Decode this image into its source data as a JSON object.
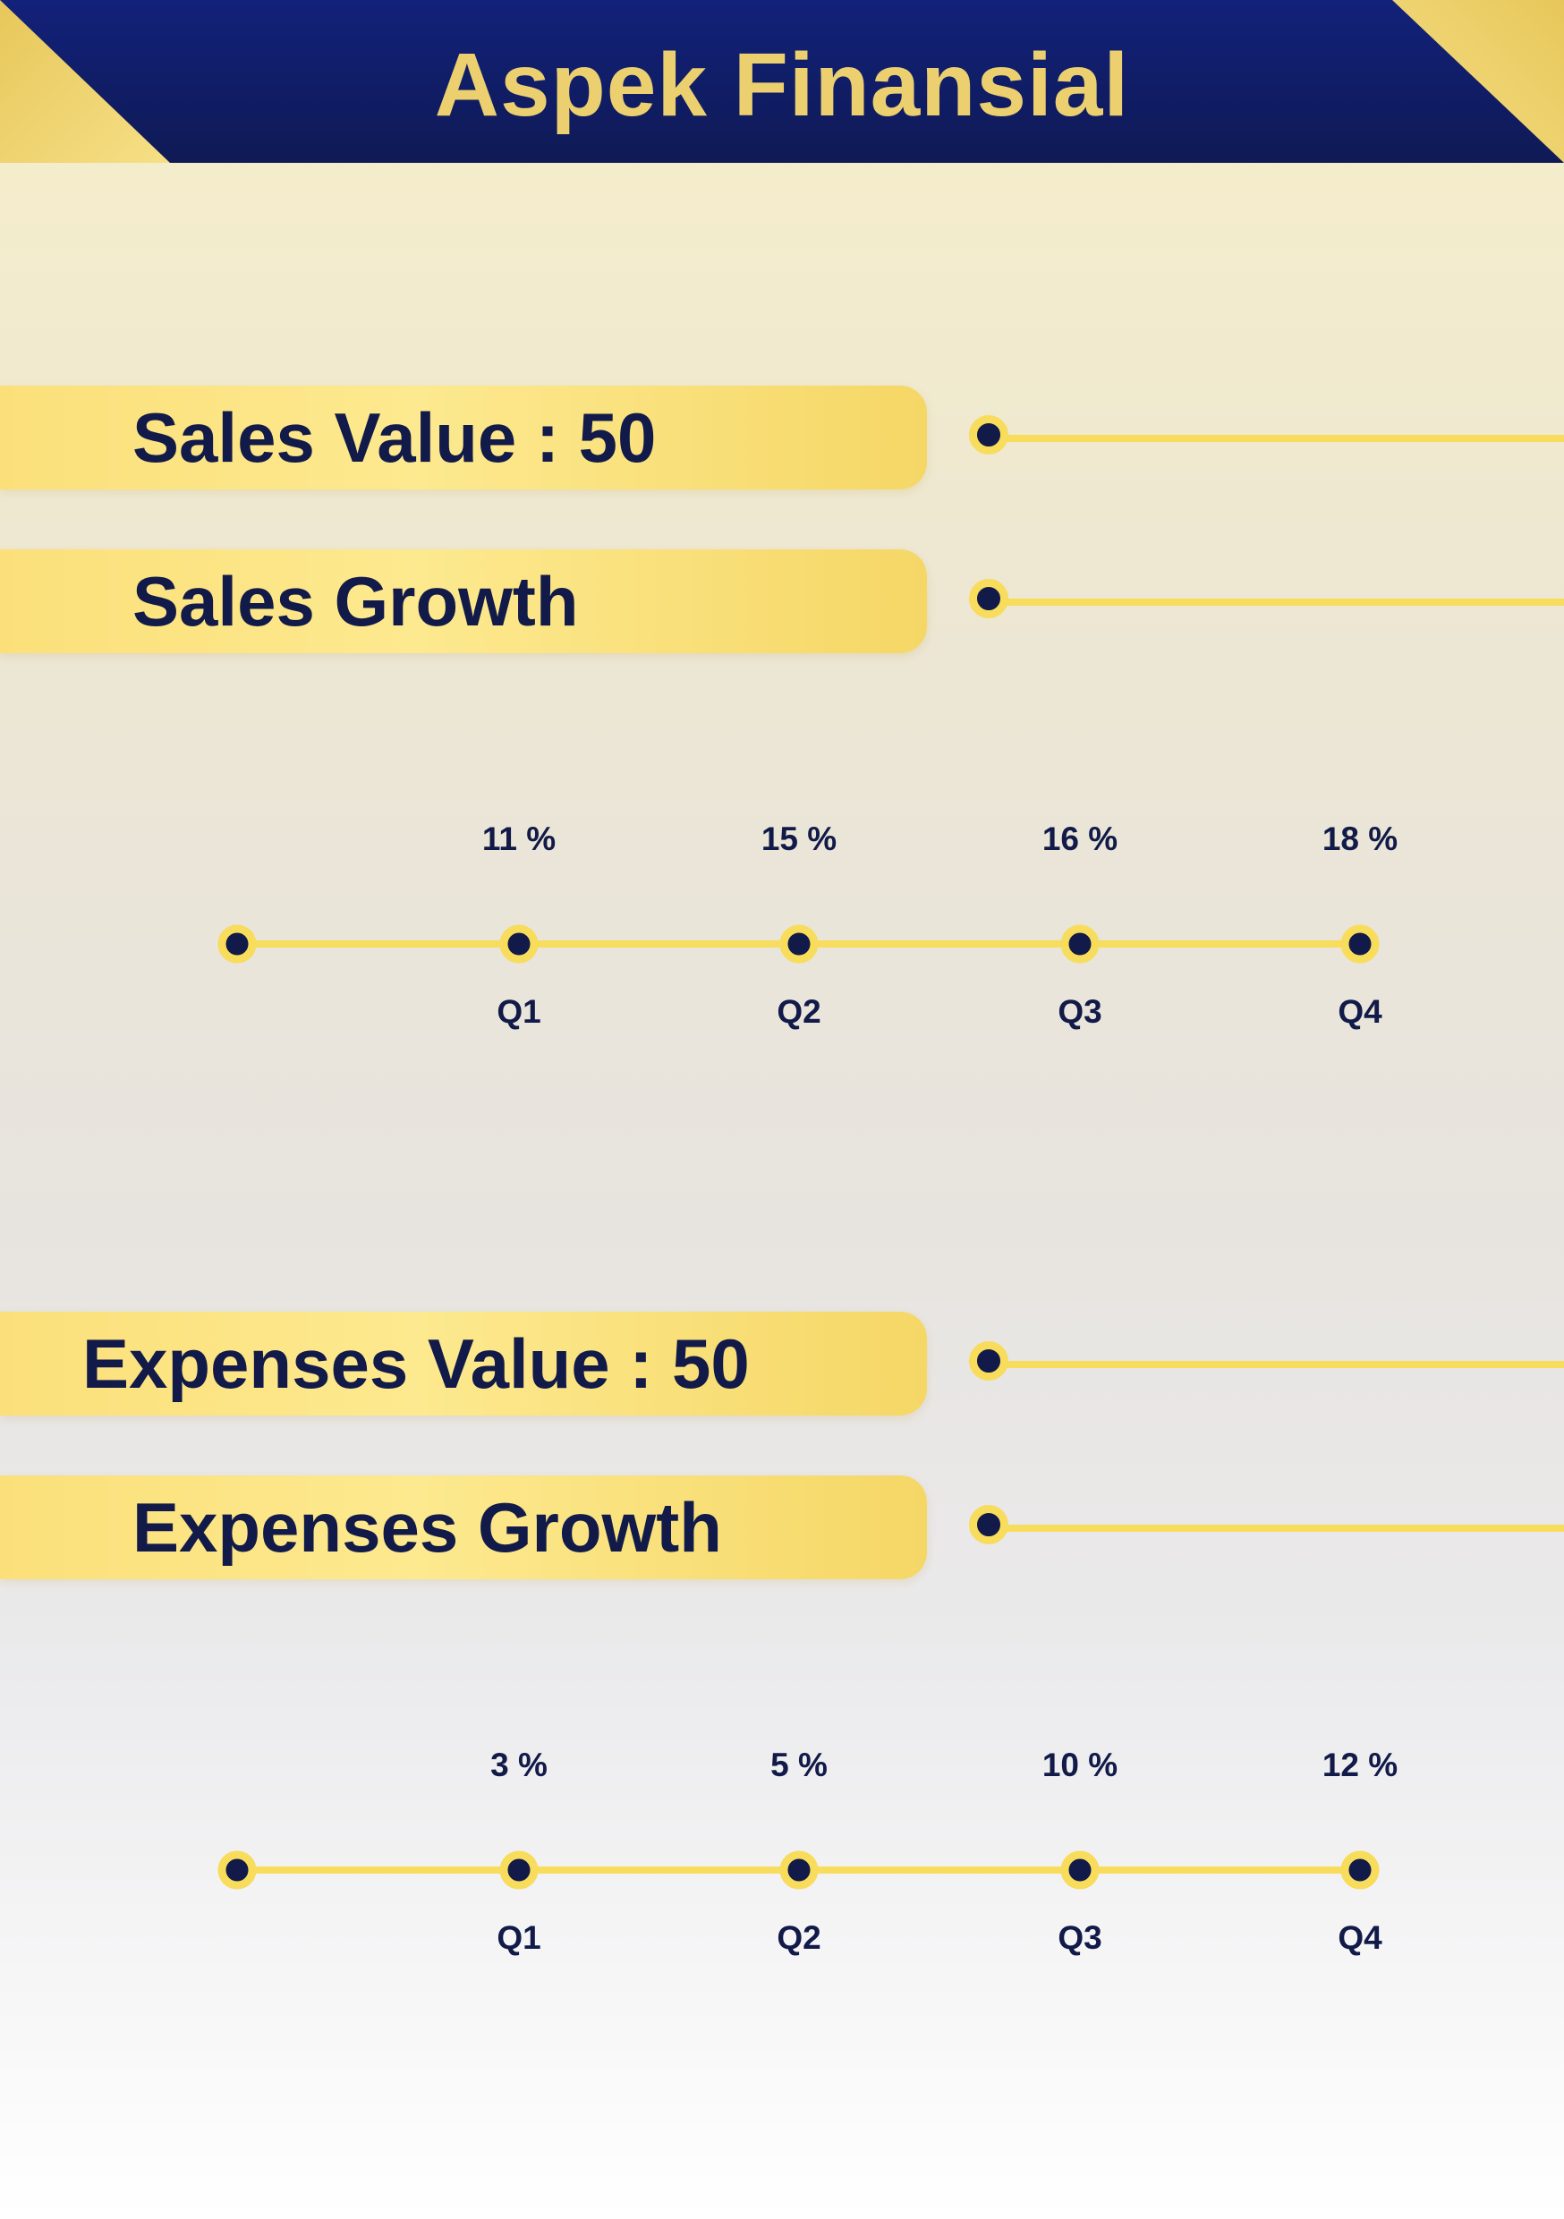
{
  "header": {
    "title": "Aspek Finansial"
  },
  "sections": [
    {
      "value_label": "Sales Value : 50",
      "growth_label": "Sales Growth"
    },
    {
      "value_label": "Expenses Value : 50",
      "growth_label": "Expenses Growth"
    }
  ],
  "chart_data": [
    {
      "type": "line",
      "categories": [
        "Q1",
        "Q2",
        "Q3",
        "Q4"
      ],
      "series": [
        {
          "values": [
            11,
            15,
            16,
            18
          ]
        }
      ],
      "value_labels": [
        "11 %",
        "15 %",
        "16 %",
        "18 %"
      ]
    },
    {
      "type": "line",
      "categories": [
        "Q1",
        "Q2",
        "Q3",
        "Q4"
      ],
      "series": [
        {
          "values": [
            3,
            5,
            10,
            12
          ]
        }
      ],
      "value_labels": [
        "3 %",
        "5 %",
        "10 %",
        "12 %"
      ]
    }
  ],
  "colors": {
    "navy": "#111a48",
    "gold": "#f8dc5c",
    "title_gold": "#ecd070"
  }
}
